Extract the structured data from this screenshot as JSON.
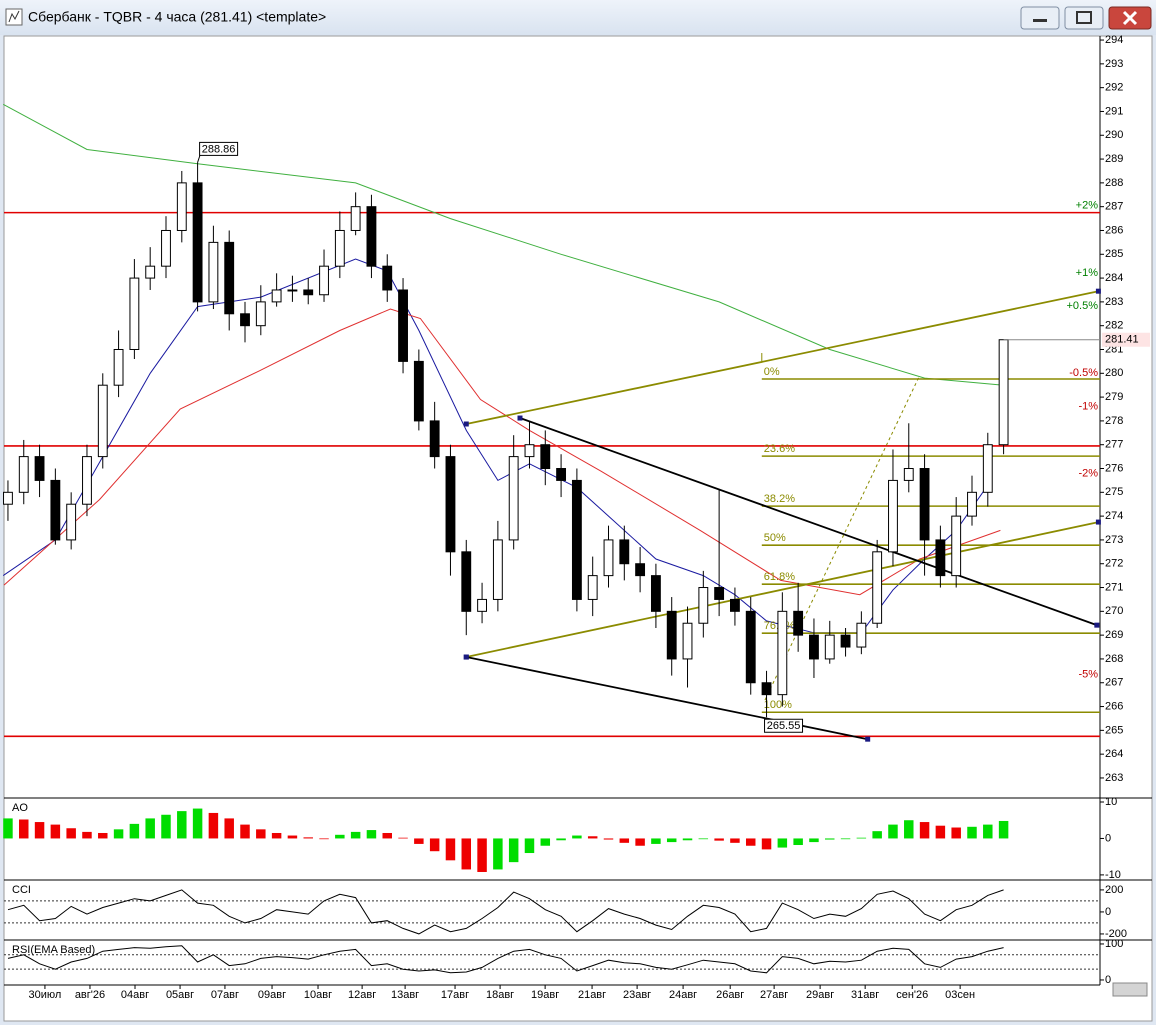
{
  "window": {
    "title": "Сбербанк - TQBR - 4 часа (281.41) <template>"
  },
  "chart_data": [
    {
      "type": "candlestick",
      "open": [
        274.5,
        275,
        276.5,
        275.5,
        273,
        274.5,
        276.5,
        279.5,
        281,
        284,
        284.5,
        286,
        288,
        283,
        285.5,
        282.5,
        282,
        283,
        283.5,
        283.5,
        283.3,
        284.5,
        286,
        287,
        284.5,
        283.5,
        280.5,
        278,
        276.5,
        272.5,
        270,
        270.5,
        273,
        276.5,
        277,
        276,
        275.5,
        270.5,
        271.5,
        273,
        272,
        271.5,
        270,
        268,
        269.5,
        271,
        270.5,
        270,
        267,
        266.5,
        270,
        269,
        268,
        269,
        268.5,
        269.5,
        272.5,
        275.5,
        276,
        273,
        271.5,
        274,
        275,
        277
      ],
      "high": [
        275.5,
        277.2,
        277,
        276,
        275,
        277,
        280,
        281.8,
        284.8,
        285.3,
        286.6,
        288.5,
        288.86,
        286.2,
        286,
        283,
        283.7,
        284.2,
        284.1,
        284,
        285.2,
        286.8,
        287.6,
        287.5,
        285,
        284,
        281,
        278.8,
        277,
        273,
        271.2,
        273.8,
        277.4,
        278,
        277.6,
        276.6,
        276,
        272.3,
        273.6,
        273.6,
        272.7,
        272,
        270.6,
        270.2,
        271.7,
        275.1,
        271,
        270.6,
        267.5,
        270.8,
        271.2,
        269.7,
        269.6,
        269.3,
        270,
        273,
        276.8,
        277.9,
        276.6,
        273.6,
        274.8,
        275.7,
        277.5,
        281.41
      ],
      "low": [
        273.8,
        274.5,
        274.8,
        272.8,
        272.6,
        274,
        276,
        279,
        280.6,
        283.5,
        284,
        285.5,
        282.6,
        282.7,
        281.8,
        281.3,
        281.6,
        282.8,
        283,
        282.9,
        283,
        284,
        285.8,
        284,
        283,
        280,
        277.6,
        276,
        271.5,
        269,
        269.5,
        270,
        272.6,
        276,
        275.3,
        274.8,
        270,
        269.8,
        271,
        271.3,
        270.8,
        269.3,
        267.3,
        266.8,
        268.9,
        269.8,
        269.4,
        266.5,
        265.55,
        266,
        268.3,
        267.2,
        267.8,
        268.1,
        268.2,
        269.3,
        271.9,
        275,
        271.5,
        271,
        271,
        273.6,
        274.4,
        276.6
      ],
      "close": [
        275,
        276.5,
        275.5,
        273,
        274.5,
        276.5,
        279.5,
        281,
        284,
        284.5,
        286,
        288,
        283,
        285.5,
        282.5,
        282,
        283,
        283.5,
        283.5,
        283.3,
        284.5,
        286,
        287,
        284.5,
        283.5,
        280.5,
        278,
        276.5,
        272.5,
        270,
        270.5,
        273,
        276.5,
        277,
        276,
        275.5,
        270.5,
        271.5,
        273,
        272,
        271.5,
        270,
        268,
        269.5,
        271,
        270.5,
        270,
        267,
        266.5,
        270,
        269,
        268,
        269,
        268.5,
        269.5,
        272.5,
        275.5,
        276,
        273,
        271.5,
        274,
        275,
        277,
        281.41
      ],
      "up_color": "#ffffff",
      "down_color": "#000000",
      "xlim": [
        -0.25,
        69.1
      ],
      "xticks": [
        {
          "value": 2.34,
          "label": "30июл"
        },
        {
          "value": 5.19,
          "label": "авг'26"
        },
        {
          "value": 8.04,
          "label": "04авг"
        },
        {
          "value": 10.89,
          "label": "05авг"
        },
        {
          "value": 13.73,
          "label": "07авг"
        },
        {
          "value": 16.71,
          "label": "09авг"
        },
        {
          "value": 19.62,
          "label": "10авг"
        },
        {
          "value": 22.41,
          "label": "12авг"
        },
        {
          "value": 25.13,
          "label": "13авг"
        },
        {
          "value": 28.29,
          "label": "17авг"
        },
        {
          "value": 31.14,
          "label": "18авг"
        },
        {
          "value": 33.99,
          "label": "19авг"
        },
        {
          "value": 36.96,
          "label": "21авг"
        },
        {
          "value": 39.81,
          "label": "23авг"
        },
        {
          "value": 42.72,
          "label": "24авг"
        },
        {
          "value": 45.7,
          "label": "26авг"
        },
        {
          "value": 48.48,
          "label": "27авг"
        },
        {
          "value": 51.39,
          "label": "29авг"
        },
        {
          "value": 54.24,
          "label": "31авг"
        },
        {
          "value": 57.22,
          "label": "сен'26"
        },
        {
          "value": 60.25,
          "label": "03сен"
        }
      ],
      "ylim": [
        262.2,
        294.17
      ],
      "yticks": [
        263,
        264,
        265,
        266,
        267,
        268,
        269,
        270,
        271,
        272,
        273,
        274,
        275,
        276,
        277,
        278,
        279,
        280,
        281,
        282,
        283,
        284,
        285,
        286,
        287,
        288,
        289,
        290,
        291,
        292,
        293,
        294
      ],
      "lines": [
        {
          "color": "#1a1aa0",
          "x": [
            -0.3,
            3,
            6,
            9,
            12,
            16,
            22,
            24,
            26,
            29,
            31,
            33,
            36,
            38,
            41,
            44,
            46,
            48,
            51,
            54,
            56,
            58,
            60,
            62
          ],
          "values": [
            271.5,
            273,
            276.5,
            280,
            282.8,
            283.2,
            284.8,
            284.3,
            281.8,
            277.6,
            275.5,
            276.2,
            275.2,
            274,
            272.2,
            271.5,
            270.7,
            269.6,
            269.1,
            269.1,
            270.9,
            272.2,
            273.4,
            275.3
          ]
        },
        {
          "color": "#e03030",
          "x": [
            -0.25,
            5.8,
            10.9,
            15.9,
            21,
            24.2,
            26.1,
            29.9,
            33,
            37.5,
            43.8,
            48.9,
            53.9,
            57.7,
            62.8
          ],
          "values": [
            271.1,
            274.7,
            278.5,
            280.1,
            281.8,
            282.7,
            282.3,
            278.9,
            277.6,
            275.9,
            273.4,
            271.3,
            270.7,
            272.2,
            273.4
          ]
        },
        {
          "color": "#40b040",
          "x": [
            -0.3,
            5,
            12,
            22,
            28,
            35,
            45,
            52,
            58,
            63
          ],
          "values": [
            291.3,
            289.4,
            288.8,
            288,
            286.5,
            285,
            283,
            281,
            279.8,
            279.5
          ]
        }
      ],
      "hlines": [
        {
          "value": 286.75,
          "color": "#e00000"
        },
        {
          "value": 276.95,
          "color": "#e00000"
        },
        {
          "value": 264.75,
          "color": "#e00000"
        }
      ],
      "fib": {
        "color": "#8b8b00",
        "x_start": 47.7,
        "levels": [
          {
            "value": 279.76,
            "label": "0%"
          },
          {
            "value": 276.52,
            "label": "23.6%"
          },
          {
            "value": 274.42,
            "label": "38.2%"
          },
          {
            "value": 272.78,
            "label": "50%"
          },
          {
            "value": 271.14,
            "label": "61.8%"
          },
          {
            "value": 269.08,
            "label": "76.4%"
          },
          {
            "value": 265.76,
            "label": "100%"
          }
        ]
      },
      "trendlines": [
        {
          "color": "#8b8b00",
          "x": [
            29,
            69
          ],
          "values": [
            277.87,
            283.45
          ],
          "dashed": false
        },
        {
          "color": "#8b8b00",
          "x": [
            29,
            69
          ],
          "values": [
            268.08,
            273.75
          ],
          "dashed": false
        },
        {
          "color": "#000000",
          "x": [
            29,
            54.4
          ],
          "values": [
            268.08,
            264.63
          ],
          "dashed": false
        },
        {
          "color": "#000000",
          "x": [
            32.4,
            68.9
          ],
          "values": [
            278.12,
            269.42
          ],
          "dashed": false
        },
        {
          "color": "#8b8b00",
          "x": [
            47.9,
            57.7
          ],
          "values": [
            266.27,
            279.92
          ],
          "dashed": true
        }
      ],
      "percent_levels": [
        {
          "value": 287.04,
          "label": "+2%",
          "color": "#008000"
        },
        {
          "value": 284.22,
          "label": "+1%",
          "color": "#008000"
        },
        {
          "value": 282.82,
          "label": "+0.5%",
          "color": "#008000"
        },
        {
          "value": 280.0,
          "label": "-0.5%",
          "color": "#c00000"
        },
        {
          "value": 278.6,
          "label": "-1%",
          "color": "#c00000"
        },
        {
          "value": 275.78,
          "label": "-2%",
          "color": "#c00000"
        },
        {
          "value": 267.34,
          "label": "-5%",
          "color": "#c00000"
        }
      ]
    },
    {
      "type": "bar",
      "title": "AO",
      "values": [
        5.5,
        5.2,
        4.5,
        3.8,
        2.8,
        1.8,
        1.5,
        2.5,
        4,
        5.5,
        6.5,
        7.5,
        8.2,
        7,
        5.5,
        3.8,
        2.5,
        1.5,
        0.8,
        0.3,
        -0.2,
        1,
        1.8,
        2.3,
        1.5,
        0.2,
        -1.5,
        -3.5,
        -6,
        -8.5,
        -9.2,
        -8.5,
        -6.5,
        -4,
        -2,
        -0.5,
        0.8,
        0.6,
        -0.3,
        -1.2,
        -2,
        -1.5,
        -1,
        -0.5,
        -0.2,
        -0.6,
        -1.2,
        -2,
        -3,
        -2.5,
        -1.8,
        -1,
        -0.3,
        -0.2,
        0.2,
        2,
        3.8,
        5,
        4.5,
        3.5,
        3,
        3.2,
        3.8,
        4.8
      ],
      "up_color": "#00dd00",
      "down_color": "#ee0000",
      "ylim": [
        -11.4,
        11.1
      ],
      "yticks": [
        10,
        0,
        -10
      ]
    },
    {
      "type": "line",
      "title": "CCI",
      "color": "#000000",
      "values": [
        20,
        60,
        -80,
        -60,
        50,
        -20,
        40,
        80,
        120,
        100,
        150,
        200,
        80,
        60,
        -40,
        -100,
        -60,
        20,
        0,
        -20,
        100,
        160,
        130,
        -100,
        -80,
        -150,
        -200,
        -120,
        -180,
        -150,
        -60,
        40,
        180,
        120,
        20,
        -40,
        -180,
        -80,
        30,
        -20,
        -60,
        -120,
        -160,
        -40,
        60,
        40,
        -20,
        -180,
        -150,
        80,
        20,
        -60,
        -20,
        -40,
        30,
        160,
        190,
        120,
        -20,
        -80,
        20,
        60,
        150,
        200
      ],
      "ylim": [
        -255,
        290
      ],
      "yticks": [
        200,
        0,
        -200
      ],
      "levels": [
        100,
        -100
      ]
    },
    {
      "type": "line",
      "title": "RSI(EMA Based)",
      "color": "#000000",
      "values": [
        60,
        70,
        45,
        30,
        50,
        60,
        80,
        85,
        90,
        88,
        92,
        95,
        50,
        70,
        40,
        45,
        60,
        65,
        62,
        58,
        70,
        80,
        85,
        40,
        45,
        30,
        25,
        28,
        20,
        22,
        35,
        60,
        80,
        85,
        70,
        60,
        25,
        40,
        55,
        48,
        45,
        35,
        30,
        42,
        55,
        50,
        45,
        25,
        20,
        65,
        60,
        45,
        52,
        50,
        55,
        80,
        88,
        85,
        45,
        35,
        58,
        65,
        80,
        90
      ],
      "ylim": [
        -14,
        111
      ],
      "yticks": [
        100,
        0
      ],
      "levels": [
        70,
        30
      ]
    }
  ]
}
